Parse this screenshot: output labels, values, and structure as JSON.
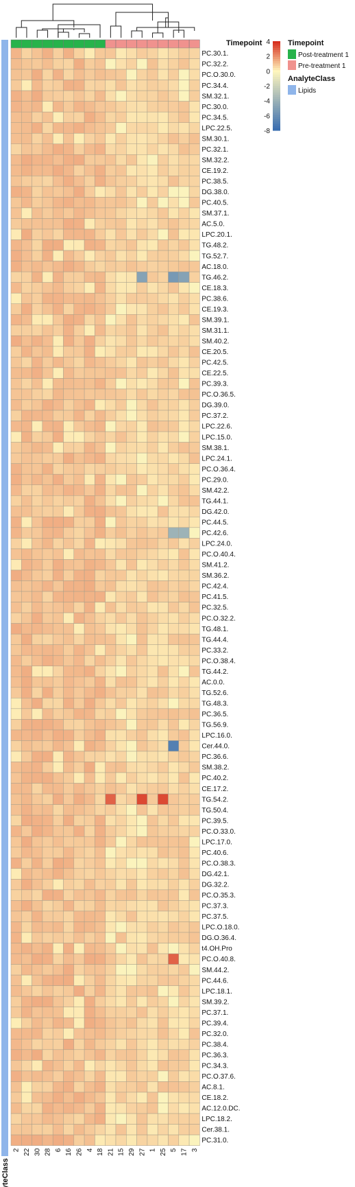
{
  "chart_data": {
    "type": "heatmap",
    "columns": [
      "2",
      "22",
      "30",
      "28",
      "6",
      "16",
      "26",
      "4",
      "18",
      "21",
      "15",
      "29",
      "27",
      "1",
      "25",
      "5",
      "17",
      "3"
    ],
    "rows": [
      "PC.30.1.",
      "PC.32.2.",
      "PC.O.30.0.",
      "PC.34.4.",
      "SM.32.1.",
      "PC.30.0.",
      "PC.34.5.",
      "LPC.22.5.",
      "SM.30.1.",
      "PC.32.1.",
      "SM.32.2.",
      "CE.19.2.",
      "PC.38.5.",
      "DG.38.0.",
      "PC.40.5.",
      "SM.37.1.",
      "AC.5.0.",
      "LPC.20.1.",
      "TG.48.2.",
      "TG.52.7.",
      "AC.18.0.",
      "TG.46.2.",
      "CE.18.3.",
      "PC.38.6.",
      "CE.19.3.",
      "SM.39.1.",
      "SM.31.1.",
      "SM.40.2.",
      "CE.20.5.",
      "PC.42.5.",
      "CE.22.5.",
      "PC.39.3.",
      "PC.O.36.5.",
      "DG.39.0.",
      "PC.37.2.",
      "LPC.22.6.",
      "LPC.15.0.",
      "SM.38.1.",
      "LPC.24.1.",
      "PC.O.36.4.",
      "PC.29.0.",
      "SM.42.2.",
      "TG.44.1.",
      "DG.42.0.",
      "PC.44.5.",
      "PC.42.6.",
      "LPC.24.0.",
      "PC.O.40.4.",
      "SM.41.2.",
      "SM.36.2.",
      "PC.42.4.",
      "PC.41.5.",
      "PC.32.5.",
      "PC.O.32.2.",
      "TG.48.1.",
      "TG.44.4.",
      "PC.33.2.",
      "PC.O.38.4.",
      "TG.44.2.",
      "AC.0.0.",
      "TG.52.6.",
      "TG.48.3.",
      "PC.36.5.",
      "TG.56.9.",
      "LPC.16.0.",
      "Cer.44.0.",
      "PC.36.6.",
      "SM.38.2.",
      "PC.40.2.",
      "CE.17.2.",
      "TG.54.2.",
      "TG.50.4.",
      "PC.39.5.",
      "PC.O.33.0.",
      "LPC.17.0.",
      "PC.40.6.",
      "PC.O.38.3.",
      "DG.42.1.",
      "DG.32.2.",
      "PC.O.35.3.",
      "PC.37.3.",
      "PC.37.5.",
      "LPC.O.18.0.",
      "DG.O.36.4.",
      "t4.OH.Pro",
      "PC.O.40.8.",
      "SM.44.2.",
      "PC.44.6.",
      "LPC.18.1.",
      "SM.39.2.",
      "PC.37.1.",
      "PC.39.4.",
      "PC.32.0.",
      "PC.38.4.",
      "PC.36.3.",
      "PC.34.3.",
      "PC.O.37.6.",
      "AC.8.1.",
      "CE.18.2.",
      "AC.12.0.DC.",
      "LPC.18.2.",
      "Cer.38.1.",
      "PC.31.0."
    ],
    "column_groups": [
      "Post-treatment 1",
      "Post-treatment 1",
      "Post-treatment 1",
      "Post-treatment 1",
      "Post-treatment 1",
      "Post-treatment 1",
      "Post-treatment 1",
      "Post-treatment 1",
      "Post-treatment 1",
      "Pre-treatment 1",
      "Pre-treatment 1",
      "Pre-treatment 1",
      "Pre-treatment 1",
      "Pre-treatment 1",
      "Pre-treatment 1",
      "Pre-treatment 1",
      "Pre-treatment 1",
      "Pre-treatment 1"
    ],
    "row_class_label": "Lipids",
    "color_scale": {
      "min": -8,
      "max": 4,
      "ticks": [
        4,
        2,
        0,
        -2,
        -4,
        -6,
        -8
      ],
      "stops": [
        "#3b6fb0",
        "#fff6bd",
        "#d7301f"
      ]
    },
    "annotations": {
      "column_track_title": "Timepoint",
      "row_track_label": "AnalyteClass",
      "legend": [
        {
          "title": "Timepoint",
          "items": [
            {
              "label": "Post-treatment 1",
              "color": "#27b34b"
            },
            {
              "label": "Pre-treatment 1",
              "color": "#f0928e"
            }
          ]
        },
        {
          "title": "AnalyteClass",
          "items": [
            {
              "label": "Lipids",
              "color": "#8fb5ea"
            }
          ]
        }
      ]
    },
    "highlights": [
      {
        "row": "TG.46.2.",
        "col": "27",
        "value": -5
      },
      {
        "row": "TG.46.2.",
        "col": "5",
        "value": -5.5
      },
      {
        "row": "TG.46.2.",
        "col": "17",
        "value": -5
      },
      {
        "row": "PC.42.6.",
        "col": "5",
        "value": -4
      },
      {
        "row": "PC.42.6.",
        "col": "17",
        "value": -4
      },
      {
        "row": "Cer.44.0.",
        "col": "5",
        "value": -7
      },
      {
        "row": "TG.54.2.",
        "col": "21",
        "value": 3
      },
      {
        "row": "TG.54.2.",
        "col": "27",
        "value": 3.5
      },
      {
        "row": "TG.54.2.",
        "col": "25",
        "value": 3.5
      },
      {
        "row": "PC.O.40.8.",
        "col": "5",
        "value": 3
      }
    ]
  }
}
